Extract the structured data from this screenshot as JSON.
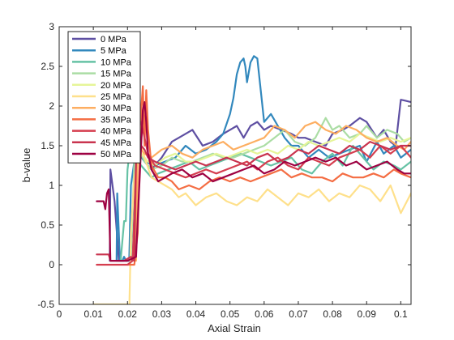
{
  "chart_data": {
    "type": "line",
    "title": "",
    "xlabel": "Axial Strain",
    "ylabel": "b-value",
    "xlim": [
      0,
      0.103
    ],
    "ylim": [
      -0.5,
      3
    ],
    "xticks": [
      0,
      0.01,
      0.02,
      0.03,
      0.04,
      0.05,
      0.06,
      0.07,
      0.08,
      0.09,
      0.1
    ],
    "xtick_labels": [
      "0",
      "0.01",
      "0.02",
      "0.03",
      "0.04",
      "0.05",
      "0.06",
      "0.07",
      "0.08",
      "0.09",
      "0.1"
    ],
    "yticks": [
      -0.5,
      0,
      0.5,
      1,
      1.5,
      2,
      2.5,
      3
    ],
    "ytick_labels": [
      "-0.5",
      "0",
      "0.5",
      "1",
      "1.5",
      "2",
      "2.5",
      "3"
    ],
    "grid": false,
    "legend_position": "top-left",
    "series": [
      {
        "name": "0 MPa",
        "color": "#5e4fa2",
        "x": [
          0.0148,
          0.015,
          0.0162,
          0.0175,
          0.019,
          0.0205,
          0.0215,
          0.0222,
          0.0226,
          0.025,
          0.027,
          0.03,
          0.033,
          0.035,
          0.037,
          0.039,
          0.042,
          0.045,
          0.048,
          0.05,
          0.052,
          0.054,
          0.056,
          0.058,
          0.06,
          0.062,
          0.065,
          0.068,
          0.07,
          0.072,
          0.075,
          0.078,
          0.08,
          0.083,
          0.085,
          0.088,
          0.09,
          0.093,
          0.095,
          0.097,
          0.0985,
          0.1,
          0.101,
          0.103
        ],
        "y": [
          0.05,
          1.2,
          0.8,
          0.05,
          0.05,
          0.05,
          0.05,
          0.9,
          1.5,
          1.3,
          1.2,
          1.35,
          1.55,
          1.6,
          1.65,
          1.7,
          1.5,
          1.55,
          1.65,
          1.7,
          1.75,
          1.6,
          1.75,
          1.8,
          1.7,
          1.75,
          1.7,
          1.65,
          1.6,
          1.6,
          1.55,
          1.5,
          1.65,
          1.7,
          1.75,
          1.85,
          1.8,
          1.6,
          1.7,
          1.55,
          1.5,
          2.08,
          2.07,
          2.05
        ]
      },
      {
        "name": "5 MPa",
        "color": "#3288bd",
        "x": [
          0.0168,
          0.017,
          0.0178,
          0.0185,
          0.019,
          0.0195,
          0.0205,
          0.021,
          0.0225,
          0.025,
          0.028,
          0.031,
          0.034,
          0.037,
          0.04,
          0.043,
          0.046,
          0.048,
          0.05,
          0.051,
          0.052,
          0.053,
          0.054,
          0.0545,
          0.055,
          0.056,
          0.057,
          0.058,
          0.059,
          0.06,
          0.062,
          0.064,
          0.066,
          0.068,
          0.07,
          0.073,
          0.076,
          0.079,
          0.082,
          0.085,
          0.088,
          0.09,
          0.093,
          0.095,
          0.098,
          0.1,
          0.103
        ],
        "y": [
          0.05,
          0.9,
          0.05,
          0.05,
          0.1,
          0.05,
          0.05,
          1.0,
          1.45,
          1.3,
          1.25,
          1.3,
          1.35,
          1.5,
          1.4,
          1.45,
          1.55,
          1.65,
          1.9,
          2.1,
          2.4,
          2.55,
          2.6,
          2.5,
          2.3,
          2.55,
          2.63,
          2.6,
          2.2,
          1.8,
          1.9,
          1.75,
          1.6,
          1.5,
          1.5,
          1.35,
          1.45,
          1.35,
          1.4,
          1.45,
          1.5,
          1.3,
          1.55,
          1.4,
          1.5,
          1.35,
          1.45
        ]
      },
      {
        "name": "10 MPa",
        "color": "#66c2a5",
        "x": [
          0.017,
          0.018,
          0.019,
          0.0195,
          0.02,
          0.021,
          0.023,
          0.025,
          0.027,
          0.029,
          0.032,
          0.035,
          0.038,
          0.041,
          0.044,
          0.047,
          0.05,
          0.053,
          0.056,
          0.059,
          0.062,
          0.065,
          0.068,
          0.071,
          0.074,
          0.077,
          0.08,
          0.083,
          0.086,
          0.089,
          0.092,
          0.095,
          0.098,
          0.1,
          0.103
        ],
        "y": [
          0.05,
          0.05,
          0.55,
          0.55,
          1.2,
          1.55,
          1.3,
          1.2,
          1.1,
          1.15,
          1.2,
          1.25,
          1.3,
          1.2,
          1.25,
          1.3,
          1.35,
          1.4,
          1.35,
          1.3,
          1.25,
          1.3,
          1.35,
          1.2,
          1.15,
          1.3,
          1.4,
          1.25,
          1.5,
          1.35,
          1.2,
          1.3,
          1.25,
          1.2,
          1.3
        ]
      },
      {
        "name": "15 MPa",
        "color": "#abdda4",
        "x": [
          0.02,
          0.021,
          0.022,
          0.023,
          0.025,
          0.027,
          0.03,
          0.033,
          0.036,
          0.039,
          0.042,
          0.045,
          0.048,
          0.051,
          0.054,
          0.057,
          0.06,
          0.063,
          0.066,
          0.069,
          0.072,
          0.075,
          0.078,
          0.08,
          0.082,
          0.085,
          0.088,
          0.09,
          0.093,
          0.096,
          0.099,
          0.101,
          0.103
        ],
        "y": [
          0.05,
          0.1,
          1.3,
          1.5,
          1.3,
          1.2,
          1.25,
          1.35,
          1.3,
          1.3,
          1.35,
          1.4,
          1.35,
          1.35,
          1.4,
          1.45,
          1.5,
          1.6,
          1.7,
          1.55,
          1.5,
          1.6,
          1.85,
          1.7,
          1.75,
          1.6,
          1.65,
          1.75,
          1.6,
          1.7,
          1.65,
          1.55,
          1.6
        ]
      },
      {
        "name": "20 MPa",
        "color": "#e6f598",
        "x": [
          0.022,
          0.0225,
          0.023,
          0.024,
          0.026,
          0.028,
          0.031,
          0.034,
          0.037,
          0.04,
          0.043,
          0.046,
          0.049,
          0.052,
          0.055,
          0.058,
          0.061,
          0.064,
          0.067,
          0.07,
          0.073,
          0.076,
          0.079,
          0.082,
          0.085,
          0.088,
          0.091,
          0.094,
          0.097,
          0.1,
          0.103
        ],
        "y": [
          0.05,
          1.0,
          1.35,
          1.4,
          1.3,
          1.25,
          1.35,
          1.4,
          1.3,
          1.3,
          1.35,
          1.4,
          1.35,
          1.4,
          1.45,
          1.4,
          1.45,
          1.4,
          1.5,
          1.45,
          1.55,
          1.5,
          1.55,
          1.6,
          1.55,
          1.65,
          1.6,
          1.55,
          1.6,
          1.55,
          1.6
        ]
      },
      {
        "name": "25 MPa",
        "color": "#fee08b",
        "x": [
          0.01,
          0.02,
          0.0205,
          0.021,
          0.022,
          0.023,
          0.024,
          0.025,
          0.027,
          0.029,
          0.031,
          0.033,
          0.035,
          0.037,
          0.04,
          0.043,
          0.046,
          0.049,
          0.052,
          0.055,
          0.058,
          0.061,
          0.064,
          0.067,
          0.07,
          0.073,
          0.076,
          0.079,
          0.082,
          0.085,
          0.088,
          0.091,
          0.094,
          0.097,
          0.1,
          0.103
        ],
        "y": [
          -0.5,
          -0.5,
          -0.6,
          0.4,
          1.1,
          1.3,
          1.5,
          1.35,
          1.1,
          1.05,
          1.0,
          0.95,
          0.85,
          0.9,
          0.75,
          0.85,
          0.9,
          0.8,
          0.75,
          0.85,
          0.8,
          0.95,
          0.85,
          0.75,
          0.9,
          0.85,
          0.95,
          0.8,
          0.9,
          0.85,
          1.0,
          0.95,
          0.8,
          1.0,
          0.65,
          0.9
        ]
      },
      {
        "name": "30 MPa",
        "color": "#fdae61",
        "x": [
          0.0225,
          0.023,
          0.0235,
          0.024,
          0.025,
          0.027,
          0.03,
          0.033,
          0.036,
          0.039,
          0.042,
          0.045,
          0.048,
          0.051,
          0.054,
          0.057,
          0.06,
          0.063,
          0.066,
          0.069,
          0.072,
          0.075,
          0.078,
          0.081,
          0.084,
          0.087,
          0.09,
          0.093,
          0.096,
          0.099,
          0.101,
          0.103
        ],
        "y": [
          0.05,
          1.5,
          1.4,
          1.45,
          1.4,
          1.35,
          1.45,
          1.5,
          1.4,
          1.35,
          1.45,
          1.5,
          1.55,
          1.45,
          1.5,
          1.55,
          1.6,
          1.75,
          1.7,
          1.6,
          1.75,
          1.8,
          1.7,
          1.65,
          1.75,
          1.7,
          1.6,
          1.55,
          1.6,
          1.5,
          1.45,
          1.55
        ]
      },
      {
        "name": "35 MPa",
        "color": "#f46d43",
        "x": [
          0.02,
          0.022,
          0.023,
          0.024,
          0.0245,
          0.025,
          0.0255,
          0.026,
          0.027,
          0.029,
          0.031,
          0.033,
          0.035,
          0.038,
          0.041,
          0.044,
          0.047,
          0.05,
          0.053,
          0.056,
          0.059,
          0.062,
          0.065,
          0.068,
          0.071,
          0.074,
          0.077,
          0.08,
          0.083,
          0.086,
          0.089,
          0.092,
          0.095,
          0.098,
          0.1,
          0.103
        ],
        "y": [
          0.0,
          0.0,
          0.4,
          1.95,
          2.25,
          1.5,
          2.2,
          1.7,
          1.25,
          1.1,
          1.1,
          1.05,
          0.95,
          1.0,
          0.95,
          1.05,
          1.1,
          1.05,
          1.1,
          1.05,
          1.1,
          1.15,
          1.2,
          1.1,
          1.15,
          1.1,
          1.1,
          1.05,
          1.15,
          1.1,
          1.1,
          1.15,
          1.1,
          1.2,
          1.15,
          1.1
        ]
      },
      {
        "name": "40 MPa",
        "color": "#d53e4f",
        "x": [
          0.011,
          0.02,
          0.0215,
          0.022,
          0.0225,
          0.023,
          0.024,
          0.025,
          0.026,
          0.028,
          0.031,
          0.034,
          0.037,
          0.04,
          0.043,
          0.046,
          0.049,
          0.052,
          0.055,
          0.058,
          0.061,
          0.064,
          0.067,
          0.07,
          0.073,
          0.076,
          0.079,
          0.082,
          0.085,
          0.088,
          0.091,
          0.094,
          0.097,
          0.1,
          0.103
        ],
        "y": [
          0.0,
          0.0,
          0.05,
          0.6,
          1.3,
          1.7,
          1.8,
          1.6,
          1.4,
          1.25,
          1.2,
          1.15,
          1.1,
          1.15,
          1.2,
          1.15,
          1.2,
          1.25,
          1.3,
          1.2,
          1.3,
          1.35,
          1.25,
          1.2,
          1.35,
          1.3,
          1.25,
          1.35,
          1.4,
          1.45,
          1.35,
          1.5,
          1.4,
          1.5,
          1.35
        ]
      },
      {
        "name": "45 MPa",
        "color": "#c9344f",
        "x": [
          0.011,
          0.0145,
          0.015,
          0.0165,
          0.019,
          0.021,
          0.022,
          0.0225,
          0.023,
          0.024,
          0.025,
          0.026,
          0.028,
          0.031,
          0.034,
          0.037,
          0.04,
          0.043,
          0.046,
          0.049,
          0.052,
          0.055,
          0.058,
          0.061,
          0.064,
          0.067,
          0.07,
          0.073,
          0.076,
          0.079,
          0.082,
          0.085,
          0.088,
          0.091,
          0.094,
          0.097,
          0.1,
          0.103
        ],
        "y": [
          0.13,
          0.13,
          0.05,
          0.05,
          0.05,
          0.1,
          0.05,
          1.3,
          1.4,
          1.5,
          1.45,
          1.35,
          1.3,
          1.25,
          1.2,
          1.25,
          1.3,
          1.25,
          1.3,
          1.35,
          1.3,
          1.25,
          1.35,
          1.4,
          1.3,
          1.35,
          1.45,
          1.4,
          1.5,
          1.45,
          1.4,
          1.5,
          1.45,
          1.55,
          1.5,
          1.45,
          1.5,
          1.5
        ]
      },
      {
        "name": "50 MPa",
        "color": "#9e0142",
        "x": [
          0.011,
          0.013,
          0.0135,
          0.014,
          0.0145,
          0.015,
          0.016,
          0.018,
          0.02,
          0.0225,
          0.024,
          0.0245,
          0.025,
          0.0255,
          0.026,
          0.027,
          0.029,
          0.031,
          0.033,
          0.036,
          0.039,
          0.042,
          0.045,
          0.048,
          0.051,
          0.054,
          0.057,
          0.06,
          0.063,
          0.066,
          0.069,
          0.072,
          0.075,
          0.078,
          0.081,
          0.084,
          0.087,
          0.09,
          0.093,
          0.096,
          0.099,
          0.101,
          0.103
        ],
        "y": [
          0.8,
          0.8,
          0.7,
          0.9,
          0.95,
          0.05,
          0.05,
          0.05,
          0.05,
          0.1,
          1.5,
          1.95,
          2.05,
          1.8,
          1.4,
          1.2,
          1.05,
          1.1,
          1.15,
          1.2,
          1.1,
          1.15,
          1.05,
          1.1,
          1.15,
          1.2,
          1.25,
          1.15,
          1.2,
          1.3,
          1.25,
          1.3,
          1.35,
          1.3,
          1.35,
          1.25,
          1.3,
          1.2,
          1.25,
          1.3,
          1.2,
          1.15,
          1.15
        ]
      }
    ]
  }
}
